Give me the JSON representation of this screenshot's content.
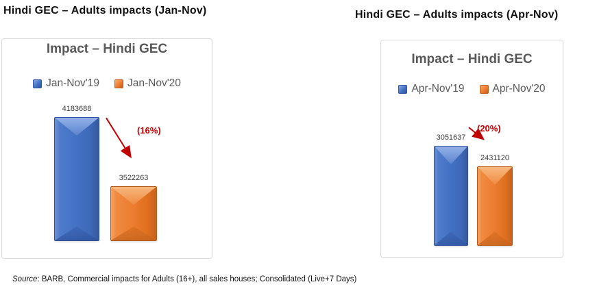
{
  "headings": {
    "left": "Hindi GEC – Adults impacts (Jan-Nov)",
    "right": "Hindi GEC – Adults impacts (Apr-Nov)"
  },
  "footer": {
    "source_label": "Source",
    "source_text": ": BARB, Commercial impacts for Adults (16+), all sales houses; Consolidated (Live+7 Days)"
  },
  "colors": {
    "bar_blue": "#4472C4",
    "bar_orange": "#ED7D31",
    "annotation_red": "#C00000",
    "title_gray": "#595959",
    "chart_border": "#D9D9D9"
  },
  "chart_data": [
    {
      "type": "bar",
      "title": "Impact – Hindi GEC",
      "categories": [
        ""
      ],
      "series": [
        {
          "name": "Jan-Nov'19",
          "values": [
            4183688
          ],
          "color": "#4472C4"
        },
        {
          "name": "Jan-Nov'20",
          "values": [
            3522263
          ],
          "color": "#ED7D31"
        }
      ],
      "annotation": {
        "text": "(16%)",
        "color": "#C00000",
        "arrow": "down-right"
      },
      "ylim": [
        3000000,
        4200000
      ],
      "xlabel": "",
      "ylabel": "",
      "legend_position": "top",
      "grid": false,
      "axes_visible": false,
      "data_labels": true,
      "bar_style": "3d-bevel"
    },
    {
      "type": "bar",
      "title": "Impact – Hindi GEC",
      "categories": [
        ""
      ],
      "series": [
        {
          "name": "Apr-Nov'19",
          "values": [
            3051637
          ],
          "color": "#4472C4"
        },
        {
          "name": "Apr-Nov'20",
          "values": [
            2431120
          ],
          "color": "#ED7D31"
        }
      ],
      "annotation": {
        "text": "(20%)",
        "color": "#C00000",
        "arrow": "down-right"
      },
      "ylim": [
        0,
        3500000
      ],
      "xlabel": "",
      "ylabel": "",
      "legend_position": "top",
      "grid": false,
      "axes_visible": false,
      "data_labels": true,
      "bar_style": "3d-bevel"
    }
  ]
}
